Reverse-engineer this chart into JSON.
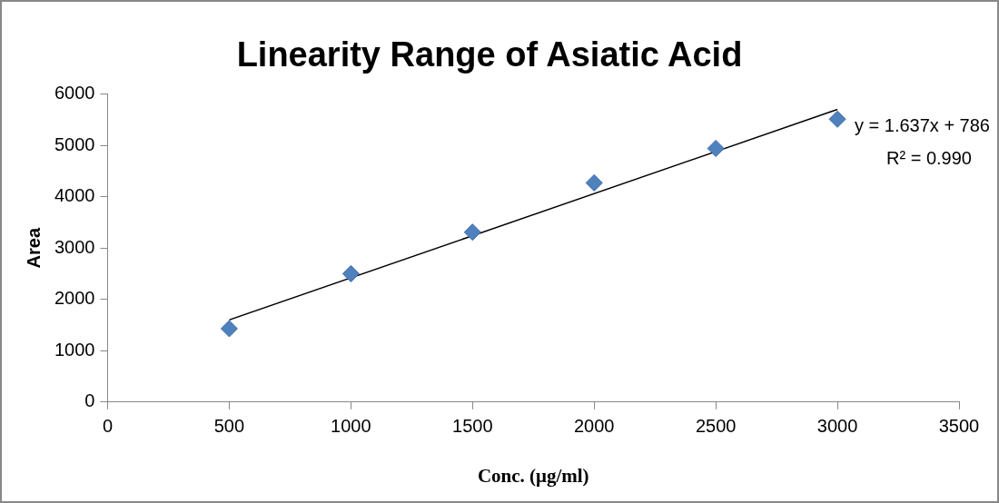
{
  "chart_data": {
    "type": "scatter",
    "title": "Linearity Range of Asiatic Acid",
    "xlabel": "Conc. (μg/ml)",
    "ylabel": "Area",
    "xlim": [
      0,
      3500
    ],
    "xticks": [
      0,
      500,
      1000,
      1500,
      2000,
      2500,
      3000,
      3500
    ],
    "ylim": [
      0,
      6000
    ],
    "yticks": [
      0,
      1000,
      2000,
      3000,
      4000,
      5000,
      6000
    ],
    "grid": false,
    "legend": false,
    "marker": "diamond",
    "series": [
      {
        "type": "scatter",
        "color": "#4f81bd",
        "x": [
          500,
          1000,
          1500,
          2000,
          2500,
          3000
        ],
        "values": [
          1430,
          2500,
          3310,
          4270,
          4940,
          5510
        ]
      },
      {
        "type": "line",
        "color": "#000000",
        "marker": "none",
        "line_style": "solid",
        "x": [
          500,
          3000
        ],
        "values": [
          1600,
          5700
        ]
      }
    ],
    "annotations": [
      "y = 1.637x + 786",
      "R² = 0.990"
    ]
  }
}
